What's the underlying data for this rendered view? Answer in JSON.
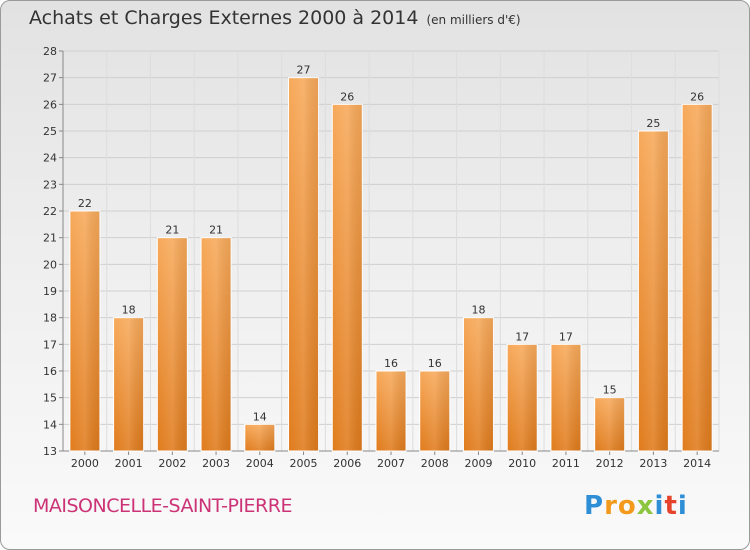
{
  "chart_data": {
    "type": "bar",
    "title": "Achats et Charges Externes 2000 à 2014",
    "unit": "(en milliers d'€)",
    "categories": [
      "2000",
      "2001",
      "2002",
      "2003",
      "2004",
      "2005",
      "2006",
      "2007",
      "2008",
      "2009",
      "2010",
      "2011",
      "2012",
      "2013",
      "2014"
    ],
    "values": [
      22,
      18,
      21,
      21,
      14,
      27,
      26,
      16,
      16,
      18,
      17,
      17,
      15,
      25,
      26
    ],
    "ylim": [
      13,
      28
    ],
    "yticks": [
      13,
      14,
      15,
      16,
      17,
      18,
      19,
      20,
      21,
      22,
      23,
      24,
      25,
      26,
      27,
      28
    ],
    "grid": true,
    "bar_color_light": "#f6a552",
    "bar_color_dark": "#e07b1c"
  },
  "location": "MAISONCELLE-SAINT-PIERRE",
  "logo": {
    "letters": [
      "P",
      "r",
      "o",
      "x",
      "i",
      "t",
      "i"
    ],
    "colors": [
      "#2f8fd6",
      "#f39a1c",
      "#f39a1c",
      "#8cc63f",
      "#2f8fd6",
      "#e6432d",
      "#2f8fd6"
    ]
  }
}
